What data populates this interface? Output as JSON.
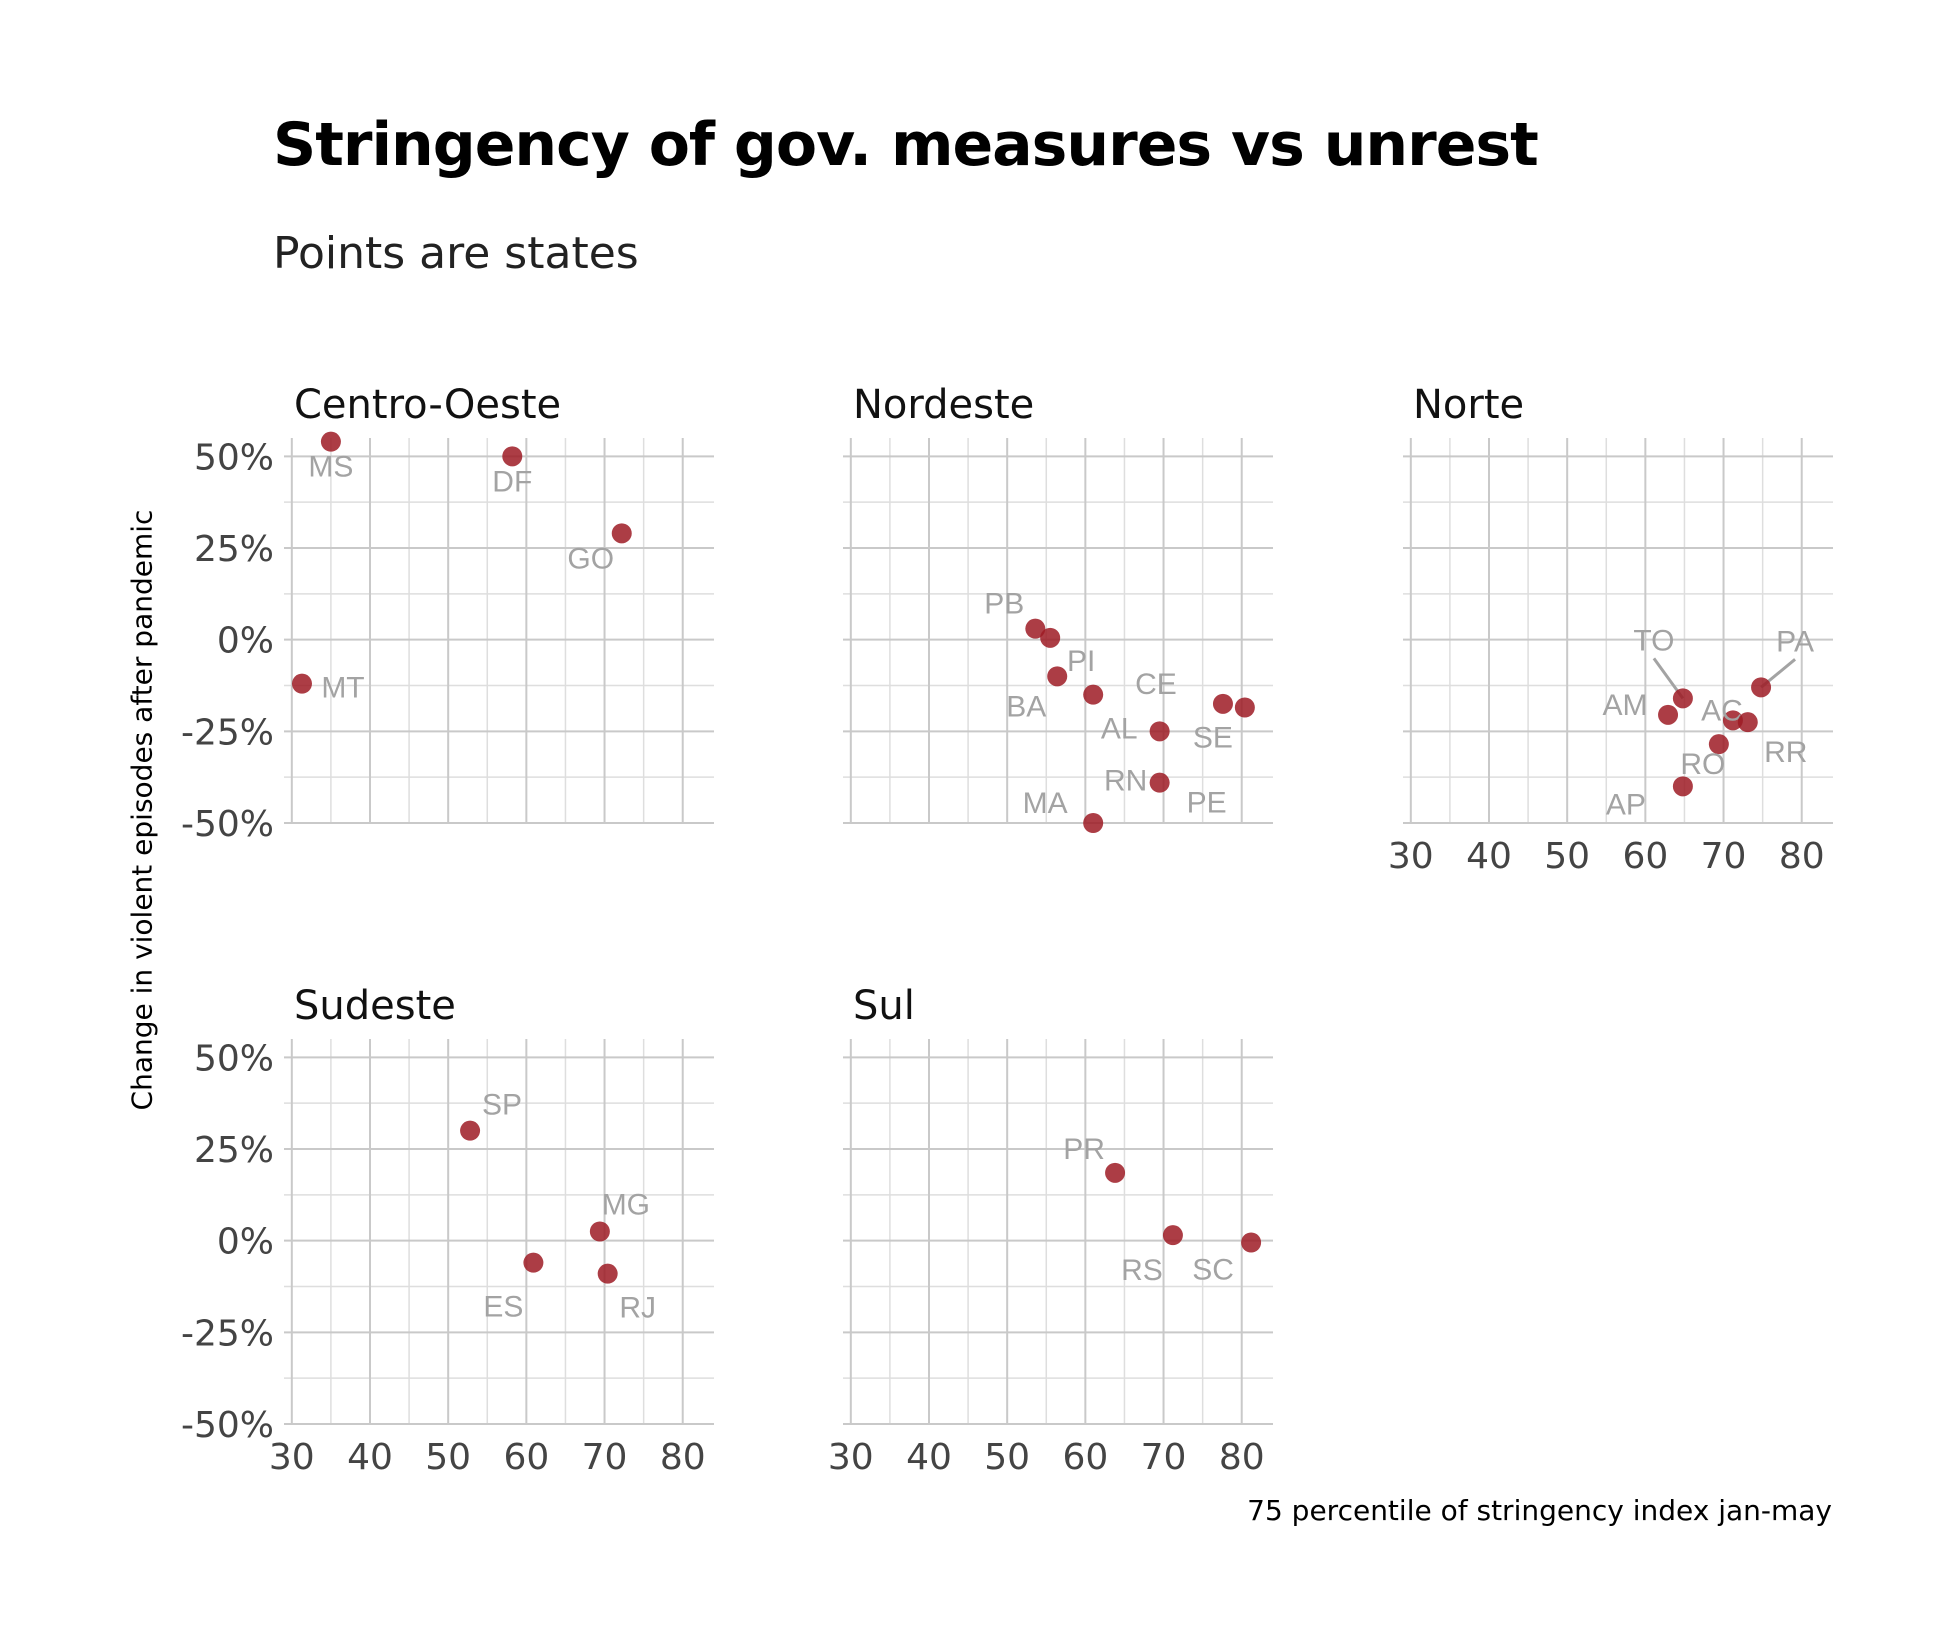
{
  "title": "Stringency of gov. measures vs unrest",
  "subtitle": "Points are states",
  "xlabel": "75 percentile of stringency index jan-may",
  "ylabel": "Change in violent episodes after pandemic",
  "chart_data": {
    "type": "scatter",
    "title": "Stringency of gov. measures vs unrest",
    "subtitle": "Points are states",
    "xlabel": "75 percentile of stringency index jan-may",
    "ylabel": "Change in violent episodes after pandemic",
    "xlim": [
      29,
      84
    ],
    "ylim": [
      -50,
      55
    ],
    "x_ticks": [
      "30",
      "40",
      "50",
      "60",
      "70",
      "80"
    ],
    "y_ticks": [
      "-50%",
      "-25%",
      "0%",
      "25%",
      "50%"
    ],
    "grid": true,
    "point_color": "#9e1b24",
    "label_color": "#a3a3a3",
    "facets": [
      {
        "name": "Centro-Oeste",
        "points": [
          {
            "label": "MS",
            "x": 35.0,
            "y": 54
          },
          {
            "label": "DF",
            "x": 58.2,
            "y": 50
          },
          {
            "label": "GO",
            "x": 72.2,
            "y": 29
          },
          {
            "label": "MT",
            "x": 31.3,
            "y": -12
          }
        ]
      },
      {
        "name": "Nordeste",
        "points": [
          {
            "label": "PB",
            "x": 53.6,
            "y": 3
          },
          {
            "label": "PI",
            "x": 55.5,
            "y": 0.5
          },
          {
            "label": "BA",
            "x": 56.4,
            "y": -10
          },
          {
            "label": "AL",
            "x": 61.0,
            "y": -15
          },
          {
            "label": "RN",
            "x": 69.5,
            "y": -25
          },
          {
            "label": "CE",
            "x": 77.6,
            "y": -17.5
          },
          {
            "label": "SE",
            "x": 80.4,
            "y": -18.5
          },
          {
            "label": "PE",
            "x": 69.5,
            "y": -39
          },
          {
            "label": "MA",
            "x": 61.0,
            "y": -50
          }
        ]
      },
      {
        "name": "Norte",
        "points": [
          {
            "label": "TO",
            "x": 64.8,
            "y": -16
          },
          {
            "label": "PA",
            "x": 74.8,
            "y": -13
          },
          {
            "label": "AM",
            "x": 62.9,
            "y": -20.5
          },
          {
            "label": "AC",
            "x": 71.2,
            "y": -22
          },
          {
            "label": "RR",
            "x": 73.1,
            "y": -22.5
          },
          {
            "label": "RO",
            "x": 69.4,
            "y": -28.5
          },
          {
            "label": "AP",
            "x": 64.8,
            "y": -40
          }
        ]
      },
      {
        "name": "Sudeste",
        "points": [
          {
            "label": "SP",
            "x": 52.8,
            "y": 30
          },
          {
            "label": "MG",
            "x": 69.4,
            "y": 2.5
          },
          {
            "label": "ES",
            "x": 60.9,
            "y": -6
          },
          {
            "label": "RJ",
            "x": 70.4,
            "y": -9
          }
        ]
      },
      {
        "name": "Sul",
        "points": [
          {
            "label": "PR",
            "x": 63.8,
            "y": 18.5
          },
          {
            "label": "RS",
            "x": 71.2,
            "y": 1.5
          },
          {
            "label": "SC",
            "x": 81.2,
            "y": -0.5
          }
        ]
      }
    ]
  }
}
